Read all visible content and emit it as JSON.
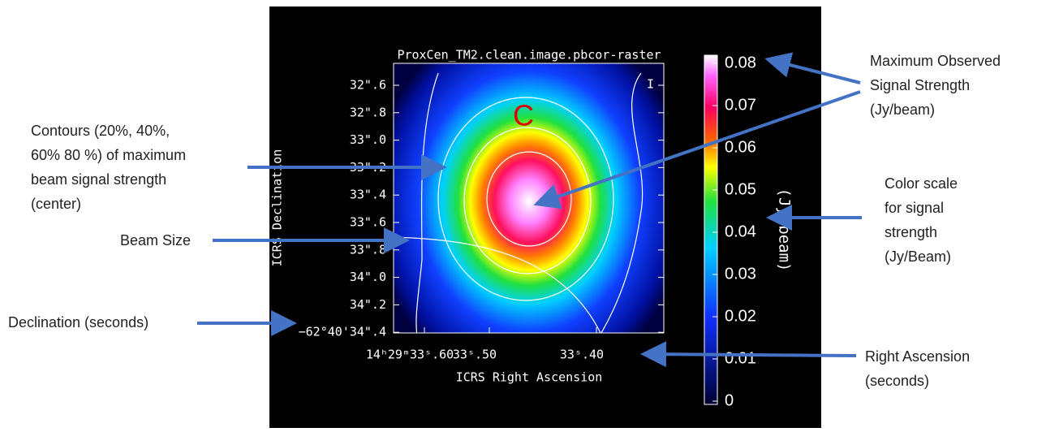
{
  "image": {
    "title": "ProxCen_TM2.clean.image.pbcor-raster",
    "stokes": "I",
    "marker": "C",
    "y_label": "ICRS Declination",
    "x_label": "ICRS Right Ascension",
    "y_ticks": [
      "32\".6",
      "32\".8",
      "33\".0",
      "33\".2",
      "33\".4",
      "33\".6",
      "33\".8",
      "34\".0",
      "34\".2",
      "−62°40'34\".4"
    ],
    "x_ticks": [
      "14ʰ29ᵐ33ˢ.60",
      "33ˢ.50",
      "33ˢ.40"
    ],
    "colorbar_ticks": [
      "0.08",
      "0.07",
      "0.06",
      "0.05",
      "0.04",
      "0.03",
      "0.02",
      "0.01",
      "0"
    ],
    "colorbar_label": "(Jy/beam)"
  },
  "annotations": {
    "contours": [
      "Contours (20%, 40%,",
      "60% 80 %) of maximum",
      "beam signal strength",
      "(center)"
    ],
    "beam_size": [
      "Beam Size"
    ],
    "declination": [
      "Declination (seconds)"
    ],
    "maximum": [
      "Maximum Observed",
      "Signal Strength",
      "(Jy/beam)"
    ],
    "color_scale": [
      "Color scale",
      "for signal",
      "strength",
      "(Jy/Beam)"
    ],
    "right_ascension": [
      "Right Ascension",
      "(seconds)"
    ]
  }
}
